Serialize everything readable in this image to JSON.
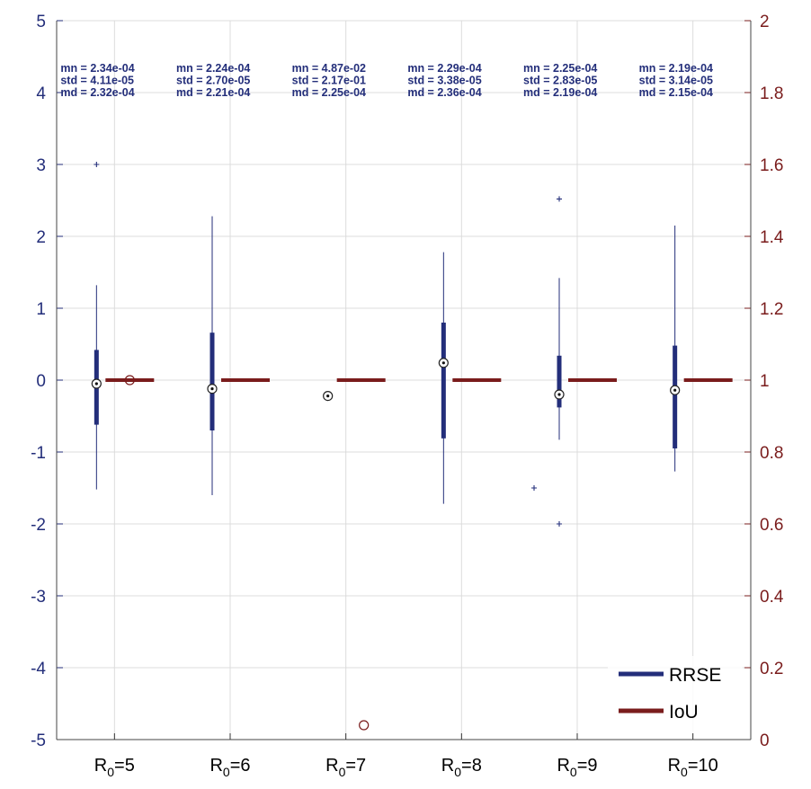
{
  "colors": {
    "rrse": "#232e7a",
    "iou": "#7a1c1c",
    "grid": "#dcdcdc",
    "axis_left": "#232e7a",
    "axis_right": "#7a1c1c"
  },
  "chart_data": {
    "type": "box",
    "title": "",
    "left_axis": {
      "ylim": [
        -5,
        5
      ],
      "ticks": [
        -5,
        -4,
        -3,
        -2,
        -1,
        0,
        1,
        2,
        3,
        4,
        5
      ]
    },
    "right_axis": {
      "ylim": [
        0,
        2
      ],
      "ticks": [
        0,
        0.2,
        0.4,
        0.6,
        0.8,
        1,
        1.2,
        1.4,
        1.6,
        1.8,
        2
      ],
      "tick_labels": [
        "0",
        "0.2",
        "0.4",
        "0.6",
        "0.8",
        "1",
        "1.2",
        "1.4",
        "1.6",
        "1.8",
        "2"
      ]
    },
    "grid": true,
    "legend": {
      "placement": "bottom-right",
      "entries": [
        {
          "name": "RRSE",
          "color_key": "rrse"
        },
        {
          "name": "IoU",
          "color_key": "iou"
        }
      ]
    },
    "categories": [
      {
        "base": "R",
        "sub": "0",
        "suffix": "=5"
      },
      {
        "base": "R",
        "sub": "0",
        "suffix": "=6"
      },
      {
        "base": "R",
        "sub": "0",
        "suffix": "=7"
      },
      {
        "base": "R",
        "sub": "0",
        "suffix": "=8"
      },
      {
        "base": "R",
        "sub": "0",
        "suffix": "=9"
      },
      {
        "base": "R",
        "sub": "0",
        "suffix": "=10"
      }
    ],
    "stats": [
      {
        "mn": "mn = 2.34e-04",
        "std": "std = 4.11e-05",
        "md": "md = 2.32e-04"
      },
      {
        "mn": "mn = 2.24e-04",
        "std": "std = 2.70e-05",
        "md": "md = 2.21e-04"
      },
      {
        "mn": "mn = 4.87e-02",
        "std": "std = 2.17e-01",
        "md": "md = 2.25e-04"
      },
      {
        "mn": "mn = 2.29e-04",
        "std": "std = 3.38e-05",
        "md": "md = 2.36e-04"
      },
      {
        "mn": "mn = 2.25e-04",
        "std": "std = 2.83e-05",
        "md": "md = 2.19e-04"
      },
      {
        "mn": "mn = 2.19e-04",
        "std": "std = 3.14e-05",
        "md": "md = 2.15e-04"
      }
    ],
    "series": [
      {
        "name": "RRSE",
        "axis": "left",
        "boxes": [
          {
            "whisker_low": -1.52,
            "q1": -0.62,
            "median": -0.05,
            "q3": 0.42,
            "whisker_high": 1.32,
            "outliers": [
              3.0
            ]
          },
          {
            "whisker_low": -1.6,
            "q1": -0.7,
            "median": -0.12,
            "q3": 0.66,
            "whisker_high": 2.28,
            "outliers": []
          },
          {
            "whisker_low": -0.25,
            "q1": -0.25,
            "median": -0.22,
            "q3": -0.2,
            "whisker_high": -0.2,
            "outliers": []
          },
          {
            "whisker_low": -1.72,
            "q1": -0.81,
            "median": 0.24,
            "q3": 0.8,
            "whisker_high": 1.78,
            "outliers": []
          },
          {
            "whisker_low": -0.83,
            "q1": -0.38,
            "median": -0.2,
            "q3": 0.34,
            "whisker_high": 1.42,
            "outliers": [
              -1.5,
              2.52,
              -2.0
            ]
          },
          {
            "whisker_low": -1.27,
            "q1": -0.95,
            "median": -0.14,
            "q3": 0.48,
            "whisker_high": 2.15,
            "outliers": []
          }
        ]
      },
      {
        "name": "IoU",
        "axis": "right",
        "boxes": [
          {
            "whisker_low": 1,
            "q1": 1,
            "median": 1,
            "q3": 1,
            "whisker_high": 1,
            "outliers": [
              1.0
            ]
          },
          {
            "whisker_low": 1,
            "q1": 1,
            "median": 1,
            "q3": 1,
            "whisker_high": 1,
            "outliers": []
          },
          {
            "whisker_low": 1,
            "q1": 1,
            "median": 1,
            "q3": 1,
            "whisker_high": 1,
            "outliers": [
              0.04
            ]
          },
          {
            "whisker_low": 1,
            "q1": 1,
            "median": 1,
            "q3": 1,
            "whisker_high": 1,
            "outliers": []
          },
          {
            "whisker_low": 1,
            "q1": 1,
            "median": 1,
            "q3": 1,
            "whisker_high": 1,
            "outliers": []
          },
          {
            "whisker_low": 1,
            "q1": 1,
            "median": 1,
            "q3": 1,
            "whisker_high": 1,
            "outliers": []
          }
        ]
      }
    ]
  }
}
